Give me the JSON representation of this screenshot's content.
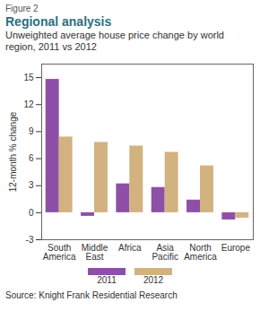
{
  "chart_data": {
    "type": "bar",
    "figure_label": "Figure 2",
    "title": "Regional analysis",
    "subtitle": "Unweighted average house price change by world region, 2011 vs 2012",
    "y_label": "12-month % change",
    "categories": [
      "South America",
      "Middle East",
      "Africa",
      "Asia Pacific",
      "North America",
      "Europe"
    ],
    "series": [
      {
        "name": "2011",
        "color": "#8e4fa6",
        "values": [
          14.8,
          -0.4,
          3.2,
          2.8,
          1.4,
          -0.8
        ]
      },
      {
        "name": "2012",
        "color": "#d2b27f",
        "values": [
          8.4,
          7.8,
          7.4,
          6.7,
          5.2,
          -0.6
        ]
      }
    ],
    "ylim": [
      -3,
      16.5
    ],
    "yticks": [
      -3,
      0,
      3,
      6,
      9,
      12,
      15
    ],
    "grid": false,
    "legend": "bottom",
    "source": "Source: Knight Frank Residential Research"
  }
}
